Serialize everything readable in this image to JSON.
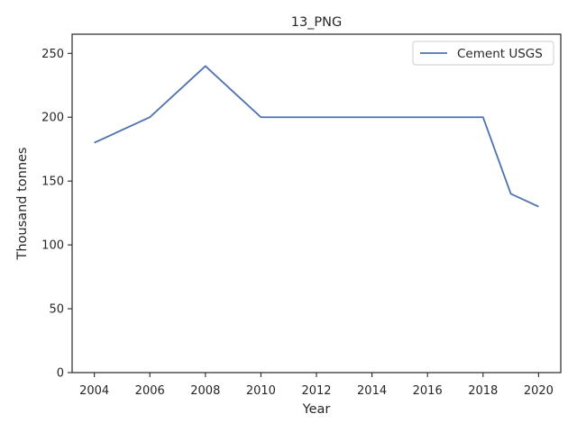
{
  "chart_data": {
    "type": "line",
    "title": "13_PNG",
    "xlabel": "Year",
    "ylabel": "Thousand tonnes",
    "x": [
      2004,
      2006,
      2008,
      2010,
      2012,
      2014,
      2016,
      2018,
      2019,
      2020
    ],
    "series": [
      {
        "name": "Cement USGS",
        "values": [
          180,
          200,
          240,
          200,
          200,
          200,
          200,
          200,
          140,
          130
        ],
        "color": "#4c72b0"
      }
    ],
    "xlim": [
      2003.2,
      2020.8
    ],
    "ylim": [
      0,
      265
    ],
    "xticks": [
      2004,
      2006,
      2008,
      2010,
      2012,
      2014,
      2016,
      2018,
      2020
    ],
    "yticks": [
      0,
      50,
      100,
      150,
      200,
      250
    ],
    "grid": false,
    "legend_position": "top-right"
  }
}
